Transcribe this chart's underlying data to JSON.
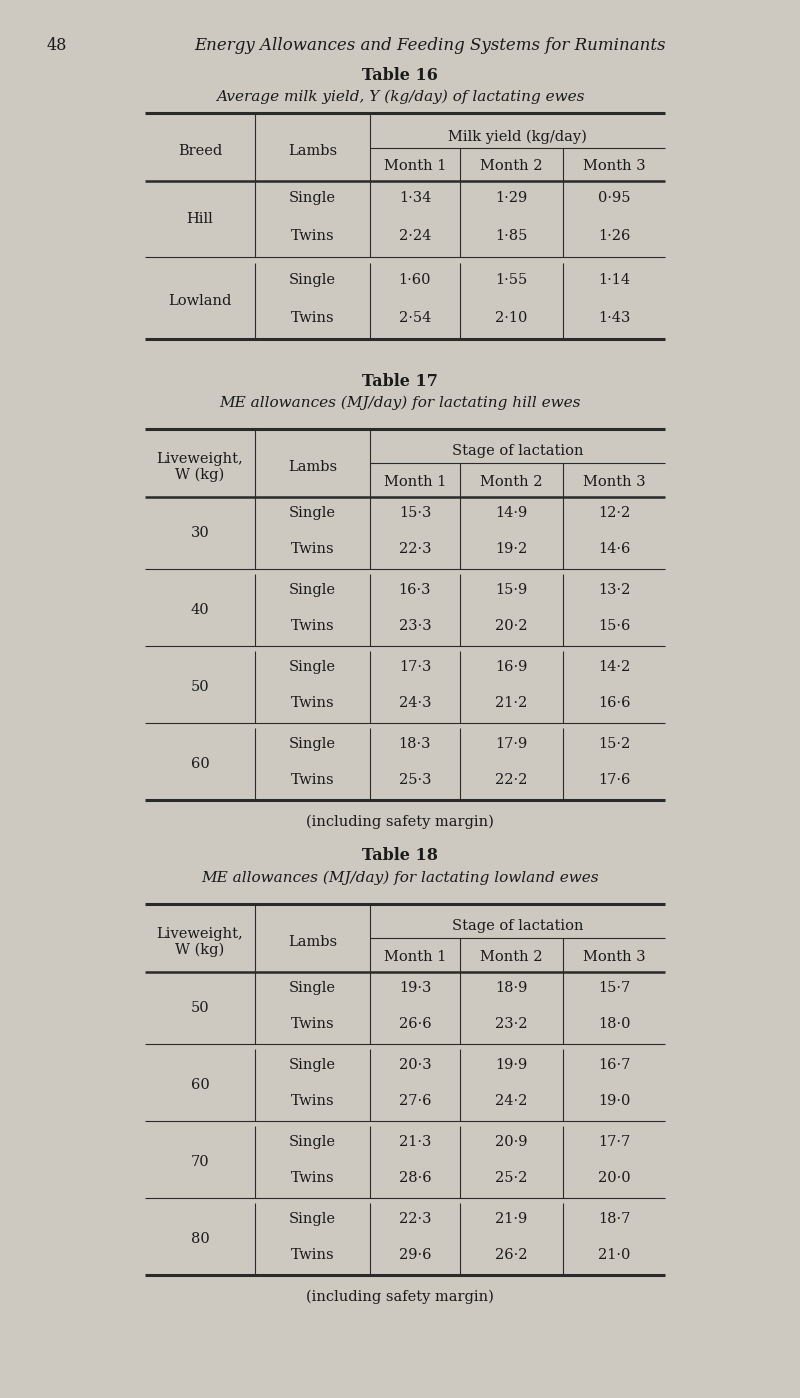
{
  "page_number": "48",
  "page_header": "Energy Allowances and Feeding Systems for Ruminants",
  "bg_color": "#cdc9c0",
  "table16_title": "Table 16",
  "table16_subtitle": "Average milk yield, Y (kg/day) of lactating ewes",
  "table16_col_header_span": "Milk yield (kg/day)",
  "table16_col1": "Breed",
  "table16_col2": "Lambs",
  "table16_col3": "Month 1",
  "table16_col4": "Month 2",
  "table16_col5": "Month 3",
  "table16_rows": [
    [
      "Hill",
      "Single",
      "1·34",
      "1·29",
      "0·95"
    ],
    [
      "",
      "Twins",
      "2·24",
      "1·85",
      "1·26"
    ],
    [
      "Lowland",
      "Single",
      "1·60",
      "1·55",
      "1·14"
    ],
    [
      "",
      "Twins",
      "2·54",
      "2·10",
      "1·43"
    ]
  ],
  "table17_title": "Table 17",
  "table17_subtitle": "ME allowances (MJ/day) for lactating hill ewes",
  "table17_col_header_span": "Stage of lactation",
  "table17_col2": "Lambs",
  "table17_col3": "Month 1",
  "table17_col4": "Month 2",
  "table17_col5": "Month 3",
  "table17_rows": [
    [
      "30",
      "Single",
      "15·3",
      "14·9",
      "12·2"
    ],
    [
      "",
      "Twins",
      "22·3",
      "19·2",
      "14·6"
    ],
    [
      "40",
      "Single",
      "16·3",
      "15·9",
      "13·2"
    ],
    [
      "",
      "Twins",
      "23·3",
      "20·2",
      "15·6"
    ],
    [
      "50",
      "Single",
      "17·3",
      "16·9",
      "14·2"
    ],
    [
      "",
      "Twins",
      "24·3",
      "21·2",
      "16·6"
    ],
    [
      "60",
      "Single",
      "18·3",
      "17·9",
      "15·2"
    ],
    [
      "",
      "Twins",
      "25·3",
      "22·2",
      "17·6"
    ]
  ],
  "table17_footer": "(including safety margin)",
  "table18_title": "Table 18",
  "table18_subtitle": "ME allowances (MJ/day) for lactating lowland ewes",
  "table18_col_header_span": "Stage of lactation",
  "table18_col2": "Lambs",
  "table18_col3": "Month 1",
  "table18_col4": "Month 2",
  "table18_col5": "Month 3",
  "table18_rows": [
    [
      "50",
      "Single",
      "19·3",
      "18·9",
      "15·7"
    ],
    [
      "",
      "Twins",
      "26·6",
      "23·2",
      "18·0"
    ],
    [
      "60",
      "Single",
      "20·3",
      "19·9",
      "16·7"
    ],
    [
      "",
      "Twins",
      "27·6",
      "24·2",
      "19·0"
    ],
    [
      "70",
      "Single",
      "21·3",
      "20·9",
      "17·7"
    ],
    [
      "",
      "Twins",
      "28·6",
      "25·2",
      "20·0"
    ],
    [
      "80",
      "Single",
      "22·3",
      "21·9",
      "18·7"
    ],
    [
      "",
      "Twins",
      "29·6",
      "26·2",
      "21·0"
    ]
  ],
  "table18_footer": "(including safety margin)"
}
